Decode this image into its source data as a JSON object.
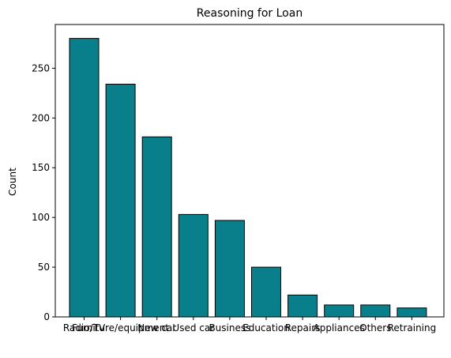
{
  "chart_data": {
    "type": "bar",
    "title": "Reasoning for Loan",
    "xlabel": "",
    "ylabel": "Count",
    "categories": [
      "Radio/TV",
      "Furniture/equipment",
      "New car",
      "Used car",
      "Business",
      "Education",
      "Repairs",
      "Appliances",
      "Others",
      "Retraining"
    ],
    "values": [
      280,
      234,
      181,
      103,
      97,
      50,
      22,
      12,
      12,
      9
    ],
    "ylim": [
      0,
      294
    ],
    "yticks": [
      0,
      50,
      100,
      150,
      200,
      250
    ],
    "grid": false,
    "bar_color": "#0a7f8c",
    "bar_edge_color": "#000000"
  }
}
